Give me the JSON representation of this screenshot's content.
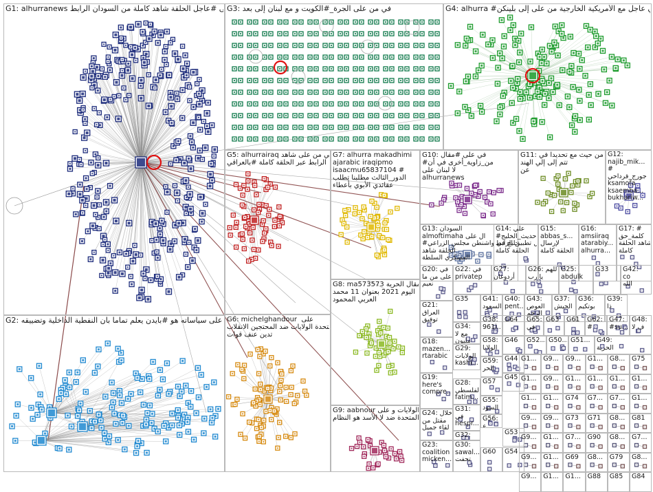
{
  "colors": {
    "background": "#ffffff",
    "panel_border": "#b9b9b9",
    "edge": "#8a8a8a",
    "edge_dark": "#6d1c1c",
    "highlight": "#e01010",
    "G1": "#1b2a7a",
    "G2": "#1e88d0",
    "G3": "#0f7a4a",
    "G4": "#1a9a2a",
    "G5": "#c02020",
    "G6": "#d68a10",
    "G7": "#e0b800",
    "G8": "#8ab820",
    "G9": "#a0285a",
    "G10": "#7a2a8a",
    "G11": "#6a8a20",
    "G12": "#4a4aa0"
  },
  "groups": [
    {
      "id": "G1",
      "lines": [
        "G1: alhurranews في على #عاجل الحلقة شاهد كاملة من السودان الرابط"
      ]
    },
    {
      "id": "G2",
      "lines": [
        "G2: على سياساته هو #بايدن يعلم تماما بأن النفطية الداخلية وتضييقه"
      ]
    },
    {
      "id": "G3",
      "lines": [
        "G3: في من على الجرة_#الكويت و مع لبنان إلى بعد"
      ]
    },
    {
      "id": "G4",
      "lines": [
        "G4: alhurra #في عاجل مع الأمريكية الخارجية من على إلى بلينكن"
      ]
    },
    {
      "id": "G5",
      "lines": [
        "G5: alhurrairaq في من على شاهد",
        "الرابط عبر الحلقة كاملة #بالعراقي"
      ]
    },
    {
      "id": "G6",
      "lines": [
        "G6: michelghandour  على",
        "المتحدة الولايات ضد المحتجين الانقلاب",
        "تدين عنف قوات"
      ]
    },
    {
      "id": "G7",
      "lines": [
        "G7: alhurra makadhimi",
        "ajarabic iraqipmo",
        "isaacmu65837104 #",
        "الدور_الثالث مطلبنا تطلب",
        "عقائدي الأبوي بأعطاء"
      ]
    },
    {
      "id": "G8",
      "lines": [
        "G8: ma573573 مقال الحرية",
        "اليوم 2021 بعنوان 11 محمد",
        "العربي المحمود"
      ]
    },
    {
      "id": "G9",
      "lines": [
        "G9: aabnour الولايات و على",
        "المتحدة ضد لا الأسد هو النظام"
      ]
    },
    {
      "id": "G10",
      "lines": [
        "G10: في على #مقال",
        "#من_زاوية_أخرى في أن",
        "لا لبنان على",
        "alhurranews"
      ]
    },
    {
      "id": "G11",
      "lines": [
        "G11: من حيث مع تحديدا في",
        "تتم إلى إلي الهند",
        "عن"
      ]
    },
    {
      "id": "G12",
      "lines": [
        "G12:",
        "najib_mik...",
        "#",
        "جورج_قرداحي",
        "ksamofa",
        "ksaemba...",
        "bukhariw..."
      ]
    },
    {
      "id": "G13",
      "lines": [
        "G13: السودان",
        "almoftimaha ال على",
        "#حديث_الخليج في واشنطن مجلس الزراعي",
        "الحلقة شاهد",
        "العسكري السلطة"
      ]
    },
    {
      "id": "G14",
      "lines": [
        "G14: علي",
        "#حديث_الخليج",
        "لإرسال تطبيق الرابط",
        "الحلقة كاملة"
      ]
    },
    {
      "id": "G15",
      "lines": [
        "G15:",
        "abbas_s...",
        "لإرسال",
        "الحلقة كاملة"
      ]
    },
    {
      "id": "G16",
      "lines": [
        "G16:",
        "amsiiraq",
        "atarabiy...",
        "alhurra..."
      ]
    },
    {
      "id": "G17",
      "lines": [
        "G17: #",
        "كلمة_حق",
        "شاهد الحلقة",
        "كاملة"
      ]
    },
    {
      "id": "G18",
      "lines": [
        "G18:",
        "mazen...",
        "rtarabic"
      ]
    },
    {
      "id": "G19",
      "lines": [
        "G19:",
        "here's",
        "compre..."
      ]
    },
    {
      "id": "G20",
      "lines": [
        "G20: في",
        "على من ما",
        "نعيم"
      ]
    },
    {
      "id": "G21",
      "lines": [
        "G21:",
        "العراق",
        "توفيق"
      ]
    },
    {
      "id": "G22",
      "lines": [
        "G22: في",
        "privatep"
      ]
    },
    {
      "id": "G23",
      "lines": [
        "G23:",
        "coalition",
        "micken..."
      ]
    },
    {
      "id": "G24",
      "lines": [
        "G24: خلال",
        "مقتل من",
        "لقاء جميل"
      ]
    },
    {
      "id": "G25",
      "lines": [
        "G25:",
        "abdulk"
      ]
    },
    {
      "id": "G26",
      "lines": [
        "G26: اللهم",
        "يا رب"
      ]
    },
    {
      "id": "G27",
      "lines": [
        "G27:",
        "أردوغان"
      ]
    },
    {
      "id": "G28",
      "lines": [
        "G28:",
        "الفلسطي",
        "fatim..."
      ]
    },
    {
      "id": "G29",
      "lines": [
        "G29:",
        "الولايات",
        "kashi..."
      ]
    },
    {
      "id": "G30",
      "lines": [
        "G30:",
        "sawal...",
        "تحفت"
      ]
    },
    {
      "id": "G31",
      "lines": [
        "G31:",
        "في",
        "hespr..."
      ]
    },
    {
      "id": "G32",
      "lines": [
        "G32:",
        "ان ترى"
      ]
    },
    {
      "id": "G33",
      "lines": [
        "G33"
      ]
    },
    {
      "id": "G34",
      "lines": [
        "G34:",
        "مع لا",
        "مليون"
      ]
    },
    {
      "id": "G35",
      "lines": [
        "G35"
      ]
    },
    {
      "id": "G36",
      "lines": [
        "G36:",
        "بوتكيم"
      ]
    },
    {
      "id": "G37",
      "lines": [
        "G37:",
        "الجيش"
      ]
    },
    {
      "id": "G38",
      "lines": [
        "G38:",
        "961i..."
      ]
    },
    {
      "id": "G39",
      "lines": [
        "G39:",
        "ذا"
      ]
    },
    {
      "id": "G40",
      "lines": [
        "G40:",
        "pent..."
      ]
    },
    {
      "id": "G41",
      "lines": [
        "G41:",
        "السعود"
      ]
    },
    {
      "id": "G42",
      "lines": [
        "G42:",
        "co",
        "الله"
      ]
    },
    {
      "id": "G43",
      "lines": [
        "G43:",
        "العوص",
        "الرحم"
      ]
    },
    {
      "id": "G44",
      "lines": [
        "G44"
      ]
    },
    {
      "id": "G45",
      "lines": [
        "G45"
      ]
    },
    {
      "id": "G46",
      "lines": [
        "G46"
      ]
    },
    {
      "id": "G47",
      "lines": [
        "G47:",
        "#su..."
      ]
    },
    {
      "id": "G48",
      "lines": [
        "G48:",
        "ف لا"
      ]
    },
    {
      "id": "G49",
      "lines": [
        "G49:",
        "الحرية"
      ]
    },
    {
      "id": "G50",
      "lines": [
        "G50..."
      ]
    },
    {
      "id": "G51",
      "lines": [
        "G51..."
      ]
    },
    {
      "id": "G52",
      "lines": [
        "G52..."
      ]
    },
    {
      "id": "G53",
      "lines": [
        "G53"
      ]
    },
    {
      "id": "G54",
      "lines": [
        "G54"
      ]
    },
    {
      "id": "G55",
      "lines": [
        "G55:",
        "السود"
      ]
    },
    {
      "id": "G56",
      "lines": [
        "G56:",
        "ع"
      ]
    },
    {
      "id": "G57",
      "lines": [
        "G57"
      ]
    },
    {
      "id": "G58",
      "lines": [
        "G58:",
        "الولايا"
      ]
    },
    {
      "id": "G59",
      "lines": [
        "G59:",
        "الحر"
      ]
    },
    {
      "id": "G60",
      "lines": [
        "G60"
      ]
    },
    {
      "id": "G61",
      "lines": [
        "G61"
      ]
    },
    {
      "id": "G62",
      "lines": [
        "G62:",
        "#"
      ]
    },
    {
      "id": "G63",
      "lines": [
        "G63"
      ]
    },
    {
      "id": "G64",
      "lines": [
        "G64"
      ]
    },
    {
      "id": "G65",
      "lines": [
        "G65:",
        "في"
      ]
    }
  ],
  "mini_labels": [
    "G1...",
    "G9...",
    "G9...",
    "G1...",
    "G8...",
    "G75",
    "G1...",
    "G9...",
    "G1...",
    "G1...",
    "G1...",
    "G1...",
    "G1...",
    "G1...",
    "G74",
    "G7...",
    "G7...",
    "G1...",
    "G9...",
    "G9...",
    "G73",
    "G71",
    "G8...",
    "G81",
    "G9...",
    "G1...",
    "G7...",
    "G90",
    "G8...",
    "G7...",
    "G9...",
    "G1...",
    "G69",
    "G8...",
    "G79",
    "G8...",
    "G9...",
    "G1...",
    "G1...",
    "G88",
    "G85",
    "G84"
  ]
}
